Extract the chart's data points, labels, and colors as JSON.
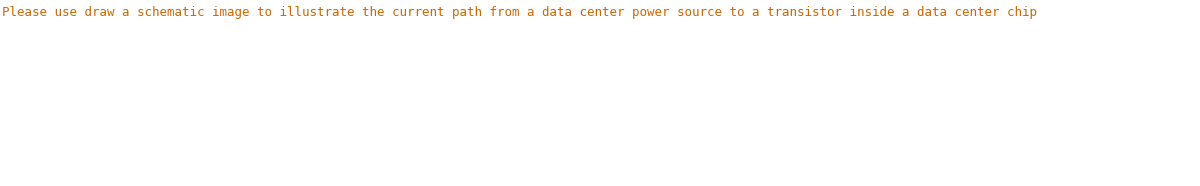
{
  "text": "Please use draw a schematic image to illustrate the current path from a data center power source to a transistor inside a data center chip",
  "text_color": "#cc6600",
  "background_color": "#ffffff",
  "font_size": 9.0,
  "font_family": "monospace",
  "fig_width": 12.0,
  "fig_height": 1.86,
  "dpi": 100
}
